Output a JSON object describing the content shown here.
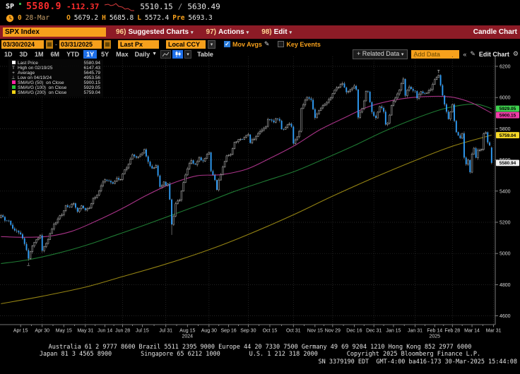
{
  "header": {
    "ticker": "SP",
    "last_price": "5580.9",
    "change": "-112.37",
    "range_low": "5510.15",
    "range_sep": "/",
    "range_high": "5630.49",
    "session": {
      "prefix": "0",
      "date": "28-Mar",
      "open_label": "O",
      "open": "5679.2",
      "high_label": "H",
      "high": "5685.8",
      "low_label": "L",
      "low": "5572.4",
      "prev_label": "Pre",
      "prev": "5693.3"
    }
  },
  "menubar": {
    "security": "SPX Index",
    "items": [
      {
        "num": "96)",
        "label": "Suggested Charts"
      },
      {
        "num": "97)",
        "label": "Actions"
      },
      {
        "num": "98)",
        "label": "Edit"
      }
    ],
    "right_label": "Candle Chart"
  },
  "toolbar": {
    "date_from": "03/30/2024",
    "date_sep": "-",
    "date_to": "03/31/2025",
    "price_field": "Last Px",
    "currency": "Local CCY",
    "mov_avgs_label": "Mov Avgs",
    "key_events_label": "Key Events"
  },
  "periodbar": {
    "ranges": [
      "1D",
      "3D",
      "1M",
      "6M",
      "YTD",
      "1Y",
      "5Y",
      "Max"
    ],
    "active_range": "1Y",
    "frequency": "Daily",
    "table_label": "Table",
    "related_prefix": "+",
    "related_label": "Related Data",
    "add_data_placeholder": "Add Data",
    "edit_chart_label": "Edit Chart"
  },
  "legend": {
    "rows": [
      {
        "mark": "sw",
        "color": "#ffffff",
        "label": "Last Price",
        "value": "5580.94"
      },
      {
        "mark": "T",
        "label": "High on 02/19/25",
        "value": "6147.43"
      },
      {
        "mark": "+",
        "label": "Average",
        "value": "5645.79"
      },
      {
        "mark": "⊥",
        "label": "Low on 04/19/24",
        "value": "4953.56"
      },
      {
        "mark": "sw",
        "color": "#ff25a4",
        "label": "SMAVG (50)  on Close",
        "value": "5900.15"
      },
      {
        "mark": "sw",
        "color": "#27c437",
        "label": "SMAVG (100)  on Close",
        "value": "5929.05"
      },
      {
        "mark": "sw",
        "color": "#f3d414",
        "label": "SMAVG (200)  on Close",
        "value": "5759.04"
      }
    ]
  },
  "chart_data": {
    "type": "candlestick",
    "title": "SPX Index",
    "ylim": [
      4580,
      6270
    ],
    "y_ticks": [
      6200,
      6000,
      5800,
      5600,
      5400,
      5200,
      5000,
      4800,
      4600
    ],
    "x_ticks": [
      {
        "day": 10,
        "label": "Apr 15"
      },
      {
        "day": 21,
        "label": "Apr 30"
      },
      {
        "day": 32,
        "label": "May 15"
      },
      {
        "day": 43,
        "label": "May 31"
      },
      {
        "day": 53,
        "label": "Jun 14"
      },
      {
        "day": 62,
        "label": "Jun 28"
      },
      {
        "day": 72,
        "label": "Jul 15"
      },
      {
        "day": 84,
        "label": "Jul 31"
      },
      {
        "day": 95,
        "label": "Aug 15",
        "year": "2024"
      },
      {
        "day": 106,
        "label": "Aug 30"
      },
      {
        "day": 116,
        "label": "Sep 16"
      },
      {
        "day": 126,
        "label": "Sep 30"
      },
      {
        "day": 137,
        "label": "Oct 15"
      },
      {
        "day": 149,
        "label": "Oct 31"
      },
      {
        "day": 160,
        "label": "Nov 15"
      },
      {
        "day": 169,
        "label": "Nov 29"
      },
      {
        "day": 180,
        "label": "Dec 16"
      },
      {
        "day": 190,
        "label": "Dec 31"
      },
      {
        "day": 200,
        "label": "Jan 15"
      },
      {
        "day": 211,
        "label": "Jan 31"
      },
      {
        "day": 221,
        "label": "Feb 14",
        "year": "2025"
      },
      {
        "day": 230,
        "label": "Feb 28"
      },
      {
        "day": 240,
        "label": "Mar 14"
      },
      {
        "day": 251,
        "label": "Mar 31"
      }
    ],
    "month_end_grid_days": [
      21,
      43,
      62,
      84,
      106,
      126,
      149,
      169,
      190,
      211,
      230,
      251
    ],
    "first_open": 5230,
    "close_anchors": [
      [
        0,
        5244
      ],
      [
        2,
        5211
      ],
      [
        4,
        5209
      ],
      [
        6,
        5160
      ],
      [
        8,
        5145
      ],
      [
        10,
        5123
      ],
      [
        12,
        5061
      ],
      [
        14,
        4967
      ],
      [
        15,
        5011
      ],
      [
        17,
        5071
      ],
      [
        19,
        5100
      ],
      [
        20,
        5116
      ],
      [
        21,
        5018
      ],
      [
        23,
        5064
      ],
      [
        25,
        5128
      ],
      [
        27,
        5188
      ],
      [
        29,
        5222
      ],
      [
        31,
        5247
      ],
      [
        33,
        5308
      ],
      [
        35,
        5297
      ],
      [
        37,
        5321
      ],
      [
        39,
        5268
      ],
      [
        41,
        5306
      ],
      [
        43,
        5278
      ],
      [
        45,
        5291
      ],
      [
        47,
        5354
      ],
      [
        49,
        5375
      ],
      [
        51,
        5434
      ],
      [
        53,
        5473
      ],
      [
        55,
        5465
      ],
      [
        57,
        5448
      ],
      [
        59,
        5483
      ],
      [
        61,
        5475
      ],
      [
        63,
        5537
      ],
      [
        65,
        5573
      ],
      [
        67,
        5634
      ],
      [
        69,
        5615
      ],
      [
        71,
        5631
      ],
      [
        73,
        5667
      ],
      [
        75,
        5588
      ],
      [
        77,
        5545
      ],
      [
        79,
        5564
      ],
      [
        81,
        5427
      ],
      [
        83,
        5459
      ],
      [
        84,
        5436
      ],
      [
        85,
        5446
      ],
      [
        86,
        5346
      ],
      [
        87,
        5186
      ],
      [
        88,
        5240
      ],
      [
        89,
        5319
      ],
      [
        91,
        5344
      ],
      [
        93,
        5455
      ],
      [
        95,
        5543
      ],
      [
        97,
        5597
      ],
      [
        99,
        5570
      ],
      [
        101,
        5616
      ],
      [
        103,
        5592
      ],
      [
        106,
        5648
      ],
      [
        107,
        5528
      ],
      [
        109,
        5471
      ],
      [
        110,
        5408
      ],
      [
        111,
        5471
      ],
      [
        113,
        5554
      ],
      [
        115,
        5626
      ],
      [
        117,
        5635
      ],
      [
        119,
        5714
      ],
      [
        122,
        5733
      ],
      [
        124,
        5745
      ],
      [
        126,
        5762
      ],
      [
        127,
        5709
      ],
      [
        130,
        5751
      ],
      [
        133,
        5792
      ],
      [
        135,
        5815
      ],
      [
        136,
        5860
      ],
      [
        139,
        5841
      ],
      [
        140,
        5865
      ],
      [
        142,
        5851
      ],
      [
        143,
        5797
      ],
      [
        145,
        5808
      ],
      [
        147,
        5832
      ],
      [
        148,
        5813
      ],
      [
        149,
        5705
      ],
      [
        150,
        5729
      ],
      [
        152,
        5783
      ],
      [
        153,
        5929
      ],
      [
        156,
        6001
      ],
      [
        158,
        5985
      ],
      [
        160,
        5870
      ],
      [
        162,
        5917
      ],
      [
        164,
        5948
      ],
      [
        166,
        5969
      ],
      [
        168,
        5998
      ],
      [
        170,
        6047
      ],
      [
        172,
        6068
      ],
      [
        174,
        6090
      ],
      [
        176,
        6034
      ],
      [
        178,
        6051
      ],
      [
        180,
        6074
      ],
      [
        181,
        6051
      ],
      [
        182,
        5872
      ],
      [
        184,
        5930
      ],
      [
        186,
        6040
      ],
      [
        187,
        6037
      ],
      [
        188,
        5970
      ],
      [
        189,
        5907
      ],
      [
        190,
        5882
      ],
      [
        191,
        5869
      ],
      [
        193,
        5942
      ],
      [
        195,
        5909
      ],
      [
        196,
        5827
      ],
      [
        197,
        5836
      ],
      [
        199,
        5950
      ],
      [
        201,
        5997
      ],
      [
        203,
        6049
      ],
      [
        205,
        6119
      ],
      [
        206,
        6012
      ],
      [
        208,
        6068
      ],
      [
        210,
        6044
      ],
      [
        211,
        6041
      ],
      [
        212,
        5995
      ],
      [
        214,
        6038
      ],
      [
        216,
        6026
      ],
      [
        218,
        6045
      ],
      [
        219,
        6052
      ],
      [
        221,
        6115
      ],
      [
        222,
        6130
      ],
      [
        223,
        6144
      ],
      [
        225,
        6013
      ],
      [
        226,
        5956
      ],
      [
        228,
        5862
      ],
      [
        230,
        5955
      ],
      [
        231,
        5850
      ],
      [
        232,
        5778
      ],
      [
        234,
        5739
      ],
      [
        235,
        5770
      ],
      [
        236,
        5615
      ],
      [
        237,
        5572
      ],
      [
        238,
        5599
      ],
      [
        239,
        5521
      ],
      [
        240,
        5638
      ],
      [
        241,
        5675
      ],
      [
        242,
        5614
      ],
      [
        243,
        5662
      ],
      [
        245,
        5668
      ],
      [
        246,
        5768
      ],
      [
        247,
        5777
      ],
      [
        248,
        5712
      ],
      [
        249,
        5693
      ],
      [
        250,
        5580.94
      ]
    ],
    "last_candle": {
      "open": 5679.2,
      "high": 5685.8,
      "low": 5572.4,
      "close": 5580.94
    },
    "wick_overrides": {
      "14": {
        "low": 4953.56
      },
      "87": {
        "low": 5119
      },
      "223": {
        "high": 6147.43
      }
    },
    "high_marker": {
      "day": 223,
      "value": 6147.43,
      "glyph": "T"
    },
    "low_marker": {
      "day": 14,
      "value": 4953.56,
      "glyph": "⊥"
    },
    "ma50": {
      "color": "#a83387",
      "anchors": [
        [
          0,
          5108
        ],
        [
          12,
          5104
        ],
        [
          24,
          5110
        ],
        [
          36,
          5142
        ],
        [
          48,
          5205
        ],
        [
          62,
          5290
        ],
        [
          74,
          5372
        ],
        [
          87,
          5448
        ],
        [
          100,
          5498
        ],
        [
          112,
          5505
        ],
        [
          125,
          5540
        ],
        [
          137,
          5610
        ],
        [
          150,
          5695
        ],
        [
          162,
          5790
        ],
        [
          175,
          5870
        ],
        [
          187,
          5940
        ],
        [
          199,
          5980
        ],
        [
          211,
          6002
        ],
        [
          223,
          6008
        ],
        [
          231,
          6000
        ],
        [
          240,
          5965
        ],
        [
          250,
          5900.15
        ]
      ]
    },
    "ma100": {
      "color": "#1f7a33",
      "anchors": [
        [
          0,
          4935
        ],
        [
          14,
          4960
        ],
        [
          29,
          5002
        ],
        [
          44,
          5055
        ],
        [
          59,
          5120
        ],
        [
          74,
          5186
        ],
        [
          89,
          5255
        ],
        [
          104,
          5325
        ],
        [
          119,
          5398
        ],
        [
          134,
          5462
        ],
        [
          150,
          5528
        ],
        [
          165,
          5608
        ],
        [
          180,
          5692
        ],
        [
          195,
          5782
        ],
        [
          210,
          5860
        ],
        [
          224,
          5922
        ],
        [
          235,
          5952
        ],
        [
          243,
          5956
        ],
        [
          250,
          5929.05
        ]
      ]
    },
    "ma200": {
      "color": "#958413",
      "anchors": [
        [
          0,
          4678
        ],
        [
          21,
          4726
        ],
        [
          43,
          4784
        ],
        [
          62,
          4852
        ],
        [
          84,
          4932
        ],
        [
          106,
          5024
        ],
        [
          126,
          5122
        ],
        [
          149,
          5248
        ],
        [
          169,
          5368
        ],
        [
          190,
          5486
        ],
        [
          211,
          5596
        ],
        [
          230,
          5688
        ],
        [
          250,
          5759.04
        ]
      ]
    },
    "axis_badges": [
      {
        "value": 5929.05,
        "text": "5929.05",
        "bg": "#3ed14e"
      },
      {
        "value": 5900.15,
        "text": "5900.15",
        "bg": "#f03ca8"
      },
      {
        "value": 5759.04,
        "text": "5759.04",
        "bg": "#f5d828"
      },
      {
        "value": 5580.94,
        "text": "5580.94",
        "bg": "#f0f0f0"
      }
    ],
    "colors": {
      "candle_down": "#2f9cf5",
      "candle_up_stroke": "#c2c2c2",
      "wick": "#9f9f9f"
    }
  },
  "footer": {
    "line1": "Australia 61 2 9777 8600 Brazil 5511 2395 9000 Europe 44 20 7330 7500 Germany 49 69 9204 1210 Hong Kong 852 2977 6000",
    "line2": "Japan 81 3 4565 8900        Singapore 65 6212 1000        U.S. 1 212 318 2000        Copyright 2025 Bloomberg Finance L.P.",
    "line3": "SN 3379190 EDT  GMT-4:00 ba416-173 30-Mar-2025 15:44:08"
  }
}
